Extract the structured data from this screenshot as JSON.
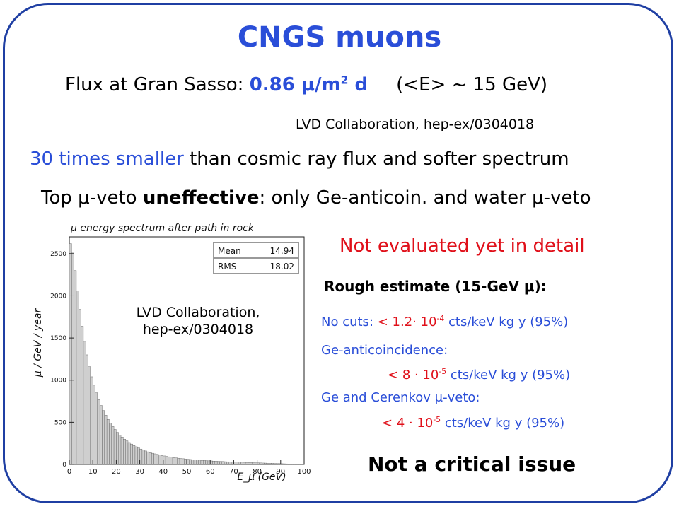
{
  "title": "CNGS muons",
  "flux": {
    "prefix": "Flux at Gran Sasso: ",
    "value_num": "0.86 ",
    "mu": "μ",
    "value_unit": "/m",
    "value_exp": "2",
    "value_suffix": " d",
    "energy": "(<E> ~ 15 GeV)"
  },
  "reference": "LVD Collaboration, hep-ex/0304018",
  "comparison": {
    "highlight": "30 times smaller",
    "rest": " than cosmic ray flux and softer spectrum"
  },
  "veto": {
    "pre": "Top ",
    "mu1": "μ",
    "mid1": "-veto ",
    "bold": "uneffective",
    "mid2": ": only Ge-anticoin. and water ",
    "mu2": "μ",
    "post": "-veto"
  },
  "status": "Not evaluated yet in detail",
  "rough": {
    "pre": "Rough estimate (15-GeV ",
    "mu": "μ",
    "post": "):"
  },
  "estimates": [
    {
      "label": "No cuts: ",
      "lt": "< ",
      "mant": "1.2· 10",
      "exp": "-4",
      "unit": " cts/keV kg y (95%)"
    },
    {
      "label": "Ge-anticoincidence:",
      "lt": "< ",
      "mant": "8 · 10",
      "exp": "-5",
      "unit": " cts/keV kg y (95%)"
    },
    {
      "label": "Ge and Cerenkov ",
      "mu": "μ",
      "label_post": "-veto:",
      "lt": "< ",
      "mant": "4 · 10",
      "exp": "-5",
      "unit": " cts/keV kg y (95%)"
    }
  ],
  "conclusion": "Not a critical issue",
  "plot_reference": [
    "LVD Collaboration,",
    "hep-ex/0304018"
  ],
  "colors": {
    "frame": "#1f3fa3",
    "blue": "#2a4ed8",
    "red": "#e0101a"
  },
  "chart_data": {
    "type": "bar",
    "title": "μ energy spectrum after path in rock",
    "xlabel": "E_μ (GeV)",
    "ylabel": "μ / GeV / year",
    "xlim": [
      0,
      100
    ],
    "ylim": [
      0,
      2700
    ],
    "xticks": [
      "0",
      "10",
      "20",
      "30",
      "40",
      "50",
      "60",
      "70",
      "80",
      "90",
      "100"
    ],
    "yticks": [
      "0",
      "500",
      "1000",
      "1500",
      "2000",
      "2500"
    ],
    "stats": [
      {
        "name": "Mean",
        "value": "14.94"
      },
      {
        "name": "RMS",
        "value": "18.02"
      }
    ],
    "bin_width": 1,
    "values": [
      2620,
      2520,
      2300,
      2060,
      1840,
      1640,
      1460,
      1300,
      1160,
      1040,
      940,
      850,
      770,
      700,
      640,
      585,
      535,
      490,
      450,
      415,
      380,
      350,
      325,
      300,
      280,
      260,
      242,
      225,
      210,
      196,
      183,
      171,
      160,
      150,
      141,
      133,
      126,
      119,
      113,
      107,
      101,
      96,
      91,
      86,
      82,
      78,
      74,
      71,
      68,
      65,
      62,
      59,
      57,
      55,
      53,
      51,
      49,
      47,
      45,
      43,
      42,
      40,
      39,
      37,
      36,
      35,
      33,
      32,
      31,
      30,
      29,
      28,
      27,
      26,
      25,
      24,
      23,
      22,
      21,
      20,
      19,
      18,
      17,
      16,
      15,
      14,
      13,
      12,
      11,
      10,
      9,
      8,
      7,
      6,
      5,
      4,
      3,
      2,
      1,
      1
    ]
  }
}
